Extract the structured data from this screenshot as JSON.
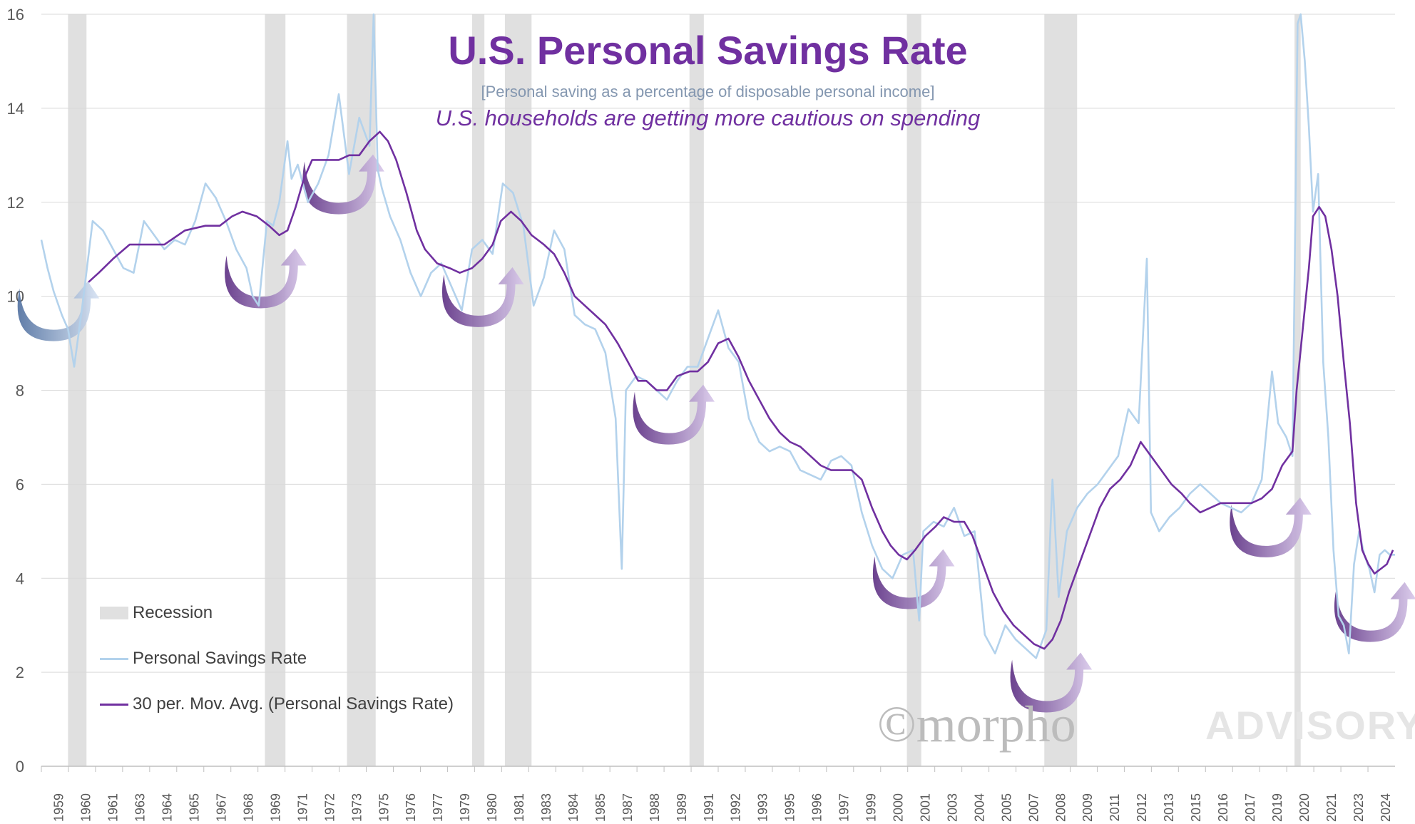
{
  "header": {
    "title": "U.S. Personal Savings Rate",
    "subtitle": "[Personal saving as a percentage of disposable personal income]",
    "note": "U.S. households are getting more cautious on spending"
  },
  "legend": {
    "recession": "Recession",
    "savings": "Personal Savings Rate",
    "mavg": "30 per. Mov. Avg. (Personal Savings Rate)"
  },
  "watermark": {
    "brand": "©morpho",
    "sub": "ADVISORY"
  },
  "colors": {
    "savings": "#b3d2ec",
    "mavg": "#7030a0",
    "recession": "#e0e0e0",
    "title": "#7030a0",
    "grid": "#d9d9d9"
  },
  "chart_data": {
    "type": "line",
    "ylim": [
      0,
      16
    ],
    "yticks": [
      0,
      2,
      4,
      6,
      8,
      10,
      12,
      14,
      16
    ],
    "xlim": [
      1959.0,
      2025.0
    ],
    "xtick_labels": [
      "1959",
      "1960",
      "1961",
      "1963",
      "1964",
      "1965",
      "1967",
      "1968",
      "1969",
      "1971",
      "1972",
      "1973",
      "1975",
      "1976",
      "1977",
      "1979",
      "1980",
      "1981",
      "1983",
      "1984",
      "1985",
      "1987",
      "1988",
      "1989",
      "1991",
      "1992",
      "1993",
      "1995",
      "1996",
      "1997",
      "1999",
      "2000",
      "2001",
      "2003",
      "2004",
      "2005",
      "2007",
      "2008",
      "2009",
      "2011",
      "2012",
      "2013",
      "2015",
      "2016",
      "2017",
      "2019",
      "2020",
      "2021",
      "2023",
      "2024"
    ],
    "recessions": [
      [
        1960.3,
        1961.2
      ],
      [
        1969.9,
        1970.9
      ],
      [
        1973.9,
        1975.3
      ],
      [
        1980.0,
        1980.6
      ],
      [
        1981.6,
        1982.9
      ],
      [
        1990.6,
        1991.3
      ],
      [
        2001.2,
        2001.9
      ],
      [
        2007.9,
        2009.5
      ],
      [
        2020.1,
        2020.4
      ]
    ],
    "series": [
      {
        "name": "Personal Savings Rate",
        "x": [
          1959.0,
          1959.3,
          1959.6,
          1960.0,
          1960.3,
          1960.6,
          1961.0,
          1961.5,
          1962.0,
          1962.5,
          1963.0,
          1963.5,
          1964.0,
          1964.5,
          1965.0,
          1965.5,
          1966.0,
          1966.5,
          1967.0,
          1967.5,
          1968.0,
          1968.5,
          1969.0,
          1969.3,
          1969.6,
          1970.0,
          1970.3,
          1970.6,
          1971.0,
          1971.2,
          1971.5,
          1972.0,
          1972.5,
          1973.0,
          1973.5,
          1974.0,
          1974.5,
          1975.0,
          1975.2,
          1975.4,
          1975.6,
          1976.0,
          1976.5,
          1977.0,
          1977.5,
          1978.0,
          1978.5,
          1979.0,
          1979.5,
          1980.0,
          1980.5,
          1981.0,
          1981.5,
          1982.0,
          1982.5,
          1983.0,
          1983.5,
          1984.0,
          1984.5,
          1985.0,
          1985.5,
          1986.0,
          1986.5,
          1987.0,
          1987.3,
          1987.5,
          1988.0,
          1988.5,
          1989.0,
          1989.5,
          1990.0,
          1990.5,
          1991.0,
          1991.5,
          1992.0,
          1992.5,
          1993.0,
          1993.5,
          1994.0,
          1994.5,
          1995.0,
          1995.5,
          1996.0,
          1996.5,
          1997.0,
          1997.5,
          1998.0,
          1998.5,
          1999.0,
          1999.5,
          2000.0,
          2000.5,
          2001.0,
          2001.5,
          2001.8,
          2002.0,
          2002.5,
          2003.0,
          2003.5,
          2004.0,
          2004.5,
          2005.0,
          2005.5,
          2006.0,
          2006.5,
          2007.0,
          2007.5,
          2008.0,
          2008.3,
          2008.6,
          2009.0,
          2009.5,
          2010.0,
          2010.5,
          2011.0,
          2011.5,
          2012.0,
          2012.5,
          2012.9,
          2013.1,
          2013.5,
          2014.0,
          2014.5,
          2015.0,
          2015.5,
          2016.0,
          2016.5,
          2017.0,
          2017.5,
          2018.0,
          2018.5,
          2019.0,
          2019.3,
          2019.7,
          2020.0,
          2020.25,
          2020.4,
          2020.6,
          2020.8,
          2021.0,
          2021.25,
          2021.5,
          2021.75,
          2022.0,
          2022.25,
          2022.5,
          2022.75,
          2023.0,
          2023.25,
          2023.5,
          2023.75,
          2024.0,
          2024.25,
          2024.5,
          2024.75,
          2025.0
        ],
        "y": [
          11.2,
          10.6,
          10.1,
          9.6,
          9.3,
          8.5,
          9.8,
          11.6,
          11.4,
          11.0,
          10.6,
          10.5,
          11.6,
          11.3,
          11.0,
          11.2,
          11.1,
          11.6,
          12.4,
          12.1,
          11.6,
          11.0,
          10.6,
          10.0,
          9.8,
          11.6,
          11.5,
          12.0,
          13.3,
          12.5,
          12.8,
          12.0,
          12.4,
          13.0,
          14.3,
          12.6,
          13.8,
          13.2,
          16.2,
          12.7,
          12.3,
          11.7,
          11.2,
          10.5,
          10.0,
          10.5,
          10.7,
          10.2,
          9.7,
          11.0,
          11.2,
          10.9,
          12.4,
          12.2,
          11.5,
          9.8,
          10.4,
          11.4,
          11.0,
          9.6,
          9.4,
          9.3,
          8.8,
          7.4,
          4.2,
          8.0,
          8.3,
          8.2,
          8.0,
          7.8,
          8.2,
          8.5,
          8.5,
          9.1,
          9.7,
          8.9,
          8.6,
          7.4,
          6.9,
          6.7,
          6.8,
          6.7,
          6.3,
          6.2,
          6.1,
          6.5,
          6.6,
          6.4,
          5.4,
          4.7,
          4.2,
          4.0,
          4.5,
          4.6,
          3.1,
          5.0,
          5.2,
          5.1,
          5.5,
          4.9,
          5.0,
          2.8,
          2.4,
          3.0,
          2.7,
          2.5,
          2.3,
          2.9,
          6.1,
          3.6,
          5.0,
          5.5,
          5.8,
          6.0,
          6.3,
          6.6,
          7.6,
          7.3,
          10.8,
          5.4,
          5.0,
          5.3,
          5.5,
          5.8,
          6.0,
          5.8,
          5.6,
          5.5,
          5.4,
          5.6,
          6.1,
          8.4,
          7.3,
          7.0,
          6.6,
          15.8,
          16.0,
          15.0,
          13.6,
          11.8,
          12.6,
          8.6,
          7.0,
          4.6,
          3.2,
          3.0,
          2.4,
          4.3,
          5.0,
          4.5,
          4.2,
          3.7,
          4.5,
          4.6,
          4.5,
          4.5
        ]
      },
      {
        "name": "30 per. Mov. Avg. (Personal Savings Rate)",
        "x": [
          1961.3,
          1961.8,
          1962.5,
          1963.3,
          1964.0,
          1965.0,
          1966.0,
          1967.0,
          1967.7,
          1968.3,
          1968.8,
          1969.5,
          1970.1,
          1970.6,
          1971.0,
          1971.4,
          1971.8,
          1972.2,
          1972.8,
          1973.5,
          1974.0,
          1974.5,
          1975.0,
          1975.5,
          1975.9,
          1976.3,
          1976.8,
          1977.3,
          1977.7,
          1978.3,
          1978.9,
          1979.4,
          1980.0,
          1980.5,
          1981.0,
          1981.4,
          1981.9,
          1982.4,
          1982.9,
          1983.5,
          1984.0,
          1984.5,
          1985.0,
          1985.5,
          1986.0,
          1986.5,
          1987.1,
          1987.6,
          1988.1,
          1988.5,
          1989.0,
          1989.5,
          1990.0,
          1990.6,
          1991.0,
          1991.5,
          1992.0,
          1992.5,
          1993.0,
          1993.5,
          1994.0,
          1994.5,
          1995.0,
          1995.5,
          1996.0,
          1996.5,
          1997.0,
          1997.5,
          1998.0,
          1998.5,
          1999.0,
          1999.5,
          2000.0,
          2000.4,
          2000.8,
          2001.2,
          2001.6,
          2002.1,
          2002.6,
          2003.0,
          2003.5,
          2004.0,
          2004.4,
          2004.9,
          2005.4,
          2005.9,
          2006.4,
          2006.9,
          2007.4,
          2007.9,
          2008.3,
          2008.7,
          2009.1,
          2009.6,
          2010.1,
          2010.6,
          2011.1,
          2011.6,
          2012.1,
          2012.6,
          2013.1,
          2013.6,
          2014.1,
          2014.6,
          2015.0,
          2015.5,
          2016.0,
          2016.5,
          2017.0,
          2017.5,
          2018.0,
          2018.5,
          2019.0,
          2019.5,
          2020.0,
          2020.2,
          2020.5,
          2020.8,
          2021.0,
          2021.3,
          2021.6,
          2021.9,
          2022.2,
          2022.5,
          2022.8,
          2023.1,
          2023.4,
          2023.7,
          2024.0,
          2024.3,
          2024.6,
          2024.9
        ],
        "y": [
          10.3,
          10.5,
          10.8,
          11.1,
          11.1,
          11.1,
          11.4,
          11.5,
          11.5,
          11.7,
          11.8,
          11.7,
          11.5,
          11.3,
          11.4,
          11.9,
          12.5,
          12.9,
          12.9,
          12.9,
          13.0,
          13.0,
          13.3,
          13.5,
          13.3,
          12.9,
          12.2,
          11.4,
          11.0,
          10.7,
          10.6,
          10.5,
          10.6,
          10.8,
          11.1,
          11.6,
          11.8,
          11.6,
          11.3,
          11.1,
          10.9,
          10.5,
          10.0,
          9.8,
          9.6,
          9.4,
          9.0,
          8.6,
          8.2,
          8.2,
          8.0,
          8.0,
          8.3,
          8.4,
          8.4,
          8.6,
          9.0,
          9.1,
          8.7,
          8.2,
          7.8,
          7.4,
          7.1,
          6.9,
          6.8,
          6.6,
          6.4,
          6.3,
          6.3,
          6.3,
          6.1,
          5.5,
          5.0,
          4.7,
          4.5,
          4.4,
          4.6,
          4.9,
          5.1,
          5.3,
          5.2,
          5.2,
          4.9,
          4.3,
          3.7,
          3.3,
          3.0,
          2.8,
          2.6,
          2.5,
          2.7,
          3.1,
          3.7,
          4.3,
          4.9,
          5.5,
          5.9,
          6.1,
          6.4,
          6.9,
          6.6,
          6.3,
          6.0,
          5.8,
          5.6,
          5.4,
          5.5,
          5.6,
          5.6,
          5.6,
          5.6,
          5.7,
          5.9,
          6.4,
          6.7,
          8.0,
          9.3,
          10.6,
          11.7,
          11.9,
          11.7,
          11.0,
          10.0,
          8.6,
          7.3,
          5.6,
          4.6,
          4.3,
          4.1,
          4.2,
          4.3,
          4.6
        ]
      }
    ]
  }
}
